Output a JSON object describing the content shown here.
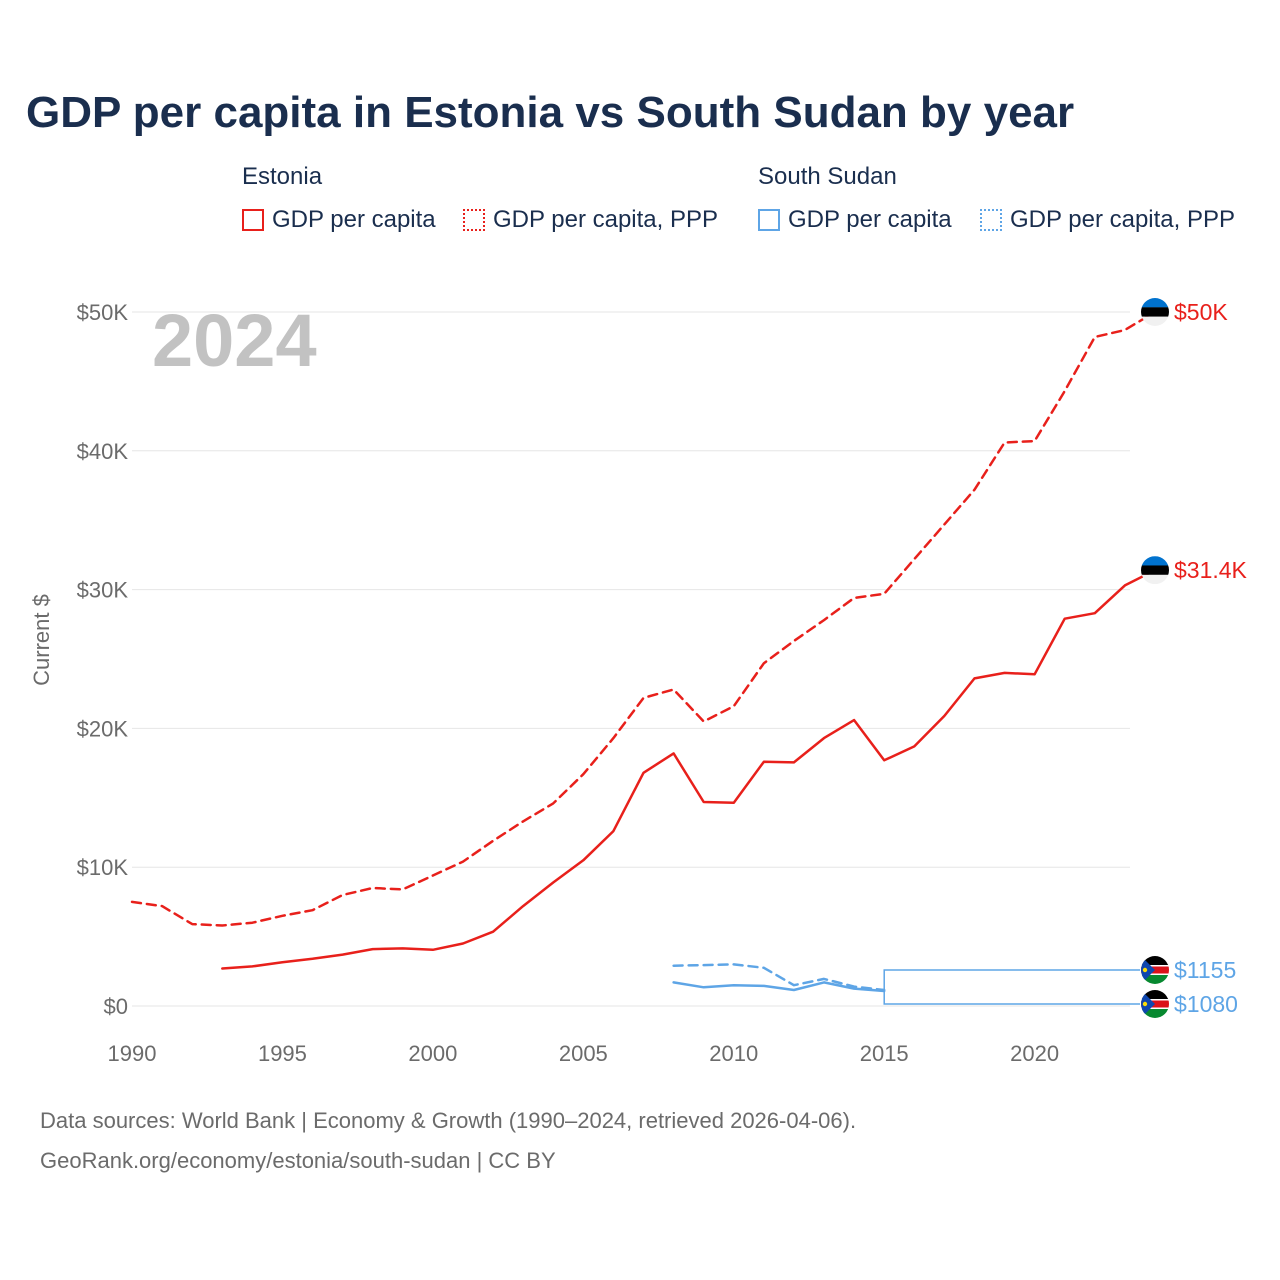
{
  "title": "GDP per capita in Estonia vs South Sudan by year",
  "legend": {
    "groups": [
      {
        "name": "Estonia",
        "color": "#e8201b",
        "items": [
          {
            "label": "GDP per capita",
            "style": "solid"
          },
          {
            "label": "GDP per capita, PPP",
            "style": "dotted"
          }
        ]
      },
      {
        "name": "South Sudan",
        "color": "#5ea5e6",
        "items": [
          {
            "label": "GDP per capita",
            "style": "solid"
          },
          {
            "label": "GDP per capita, PPP",
            "style": "dotted"
          }
        ]
      }
    ]
  },
  "year_label": "2024",
  "footer": {
    "line1": "Data sources: World Bank | Economy & Growth (1990–2024, retrieved 2026-04-06).",
    "line2": "GeoRank.org/economy/estonia/south-sudan | CC BY"
  },
  "colors": {
    "estonia": "#e8201b",
    "south_sudan": "#5ea5e6",
    "grid": "#e6e6e6",
    "axis_text": "#6b6b6b"
  },
  "chart_data": {
    "type": "line",
    "title": "GDP per capita in Estonia vs South Sudan by year",
    "xlabel": "",
    "ylabel": "Current $",
    "xlim": [
      1990,
      2024
    ],
    "ylim": [
      0,
      50000
    ],
    "x_ticks": [
      1990,
      1995,
      2000,
      2005,
      2010,
      2015,
      2020
    ],
    "y_ticks": [
      0,
      10000,
      20000,
      30000,
      40000,
      50000
    ],
    "y_tick_labels": [
      "$0",
      "$10K",
      "$20K",
      "$30K",
      "$40K",
      "$50K"
    ],
    "grid": true,
    "series": [
      {
        "name": "Estonia GDP per capita, PPP",
        "country": "Estonia",
        "style": "dashed",
        "color": "#e8201b",
        "x": [
          1990,
          1991,
          1992,
          1993,
          1994,
          1995,
          1996,
          1997,
          1998,
          1999,
          2000,
          2001,
          2002,
          2003,
          2004,
          2005,
          2006,
          2007,
          2008,
          2009,
          2010,
          2011,
          2012,
          2013,
          2014,
          2015,
          2016,
          2017,
          2018,
          2019,
          2020,
          2021,
          2022,
          2023,
          2024
        ],
        "values": [
          7500,
          7200,
          5900,
          5800,
          6000,
          6500,
          6900,
          8000,
          8500,
          8400,
          9400,
          10400,
          11900,
          13300,
          14600,
          16700,
          19300,
          22200,
          22800,
          20500,
          21600,
          24700,
          26300,
          27800,
          29400,
          29700,
          32200,
          34700,
          37200,
          40600,
          40700,
          44300,
          48200,
          48700,
          50000
        ],
        "end_label": "$50K"
      },
      {
        "name": "Estonia GDP per capita",
        "country": "Estonia",
        "style": "solid",
        "color": "#e8201b",
        "x": [
          1993,
          1994,
          1995,
          1996,
          1997,
          1998,
          1999,
          2000,
          2001,
          2002,
          2003,
          2004,
          2005,
          2006,
          2007,
          2008,
          2009,
          2010,
          2011,
          2012,
          2013,
          2014,
          2015,
          2016,
          2017,
          2018,
          2019,
          2020,
          2021,
          2022,
          2023,
          2024
        ],
        "values": [
          2700,
          2850,
          3150,
          3400,
          3700,
          4100,
          4150,
          4050,
          4500,
          5350,
          7200,
          8900,
          10500,
          12600,
          16800,
          18200,
          14700,
          14650,
          17600,
          17550,
          19300,
          20600,
          17700,
          18700,
          20900,
          23600,
          24000,
          23900,
          27900,
          28300,
          30300,
          31400
        ],
        "end_label": "$31.4K"
      },
      {
        "name": "South Sudan GDP per capita, PPP",
        "country": "South Sudan",
        "style": "dashed",
        "color": "#5ea5e6",
        "x": [
          2008,
          2009,
          2010,
          2011,
          2012,
          2013,
          2014,
          2015
        ],
        "values": [
          2900,
          2950,
          3000,
          2750,
          1500,
          1950,
          1400,
          1155
        ],
        "end_label": "$1155"
      },
      {
        "name": "South Sudan GDP per capita",
        "country": "South Sudan",
        "style": "solid",
        "color": "#5ea5e6",
        "x": [
          2008,
          2009,
          2010,
          2011,
          2012,
          2013,
          2014,
          2015
        ],
        "values": [
          1700,
          1350,
          1500,
          1450,
          1150,
          1700,
          1250,
          1080
        ],
        "end_label": "$1080"
      }
    ]
  }
}
